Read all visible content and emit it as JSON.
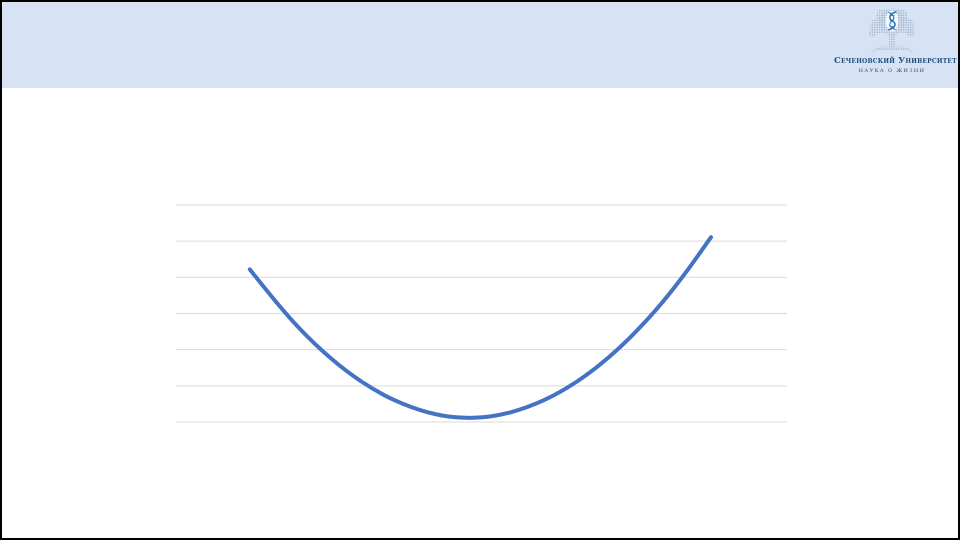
{
  "slide": {
    "background": "#ffffff",
    "border_color": "#000000",
    "header": {
      "color": "#d7e3f4"
    }
  },
  "logo": {
    "title": "Сеченовский Университет",
    "subtitle": "Наука о жизни",
    "text_color": "#1f4e79",
    "helix_color": "#2f74b5",
    "dots_color": "#97aecd",
    "emblem": "tree-with-dna-helix"
  },
  "chart_data": {
    "type": "line",
    "title": "",
    "xlabel": "",
    "ylabel": "",
    "legend": "none",
    "axis_tick_labels_visible": false,
    "x_range": [
      -2.74,
      2.97
    ],
    "y_range": [
      0,
      6
    ],
    "gridlines": {
      "horizontal_count": 7,
      "color": "#d9d9d9"
    },
    "series": [
      {
        "name": "u-shaped-parabola",
        "color": "#4472c4",
        "stroke_width": 4,
        "x": [
          -2.05,
          -1.75,
          -1.45,
          -1.15,
          -0.85,
          -0.55,
          -0.25,
          0,
          0.25,
          0.55,
          0.85,
          1.15,
          1.45,
          1.75,
          2.0,
          2.26
        ],
        "y": [
          4.22,
          3.1,
          2.16,
          1.4,
          0.81,
          0.4,
          0.16,
          0.1,
          0.16,
          0.4,
          0.81,
          1.4,
          2.16,
          3.1,
          4.02,
          5.11
        ]
      }
    ]
  }
}
